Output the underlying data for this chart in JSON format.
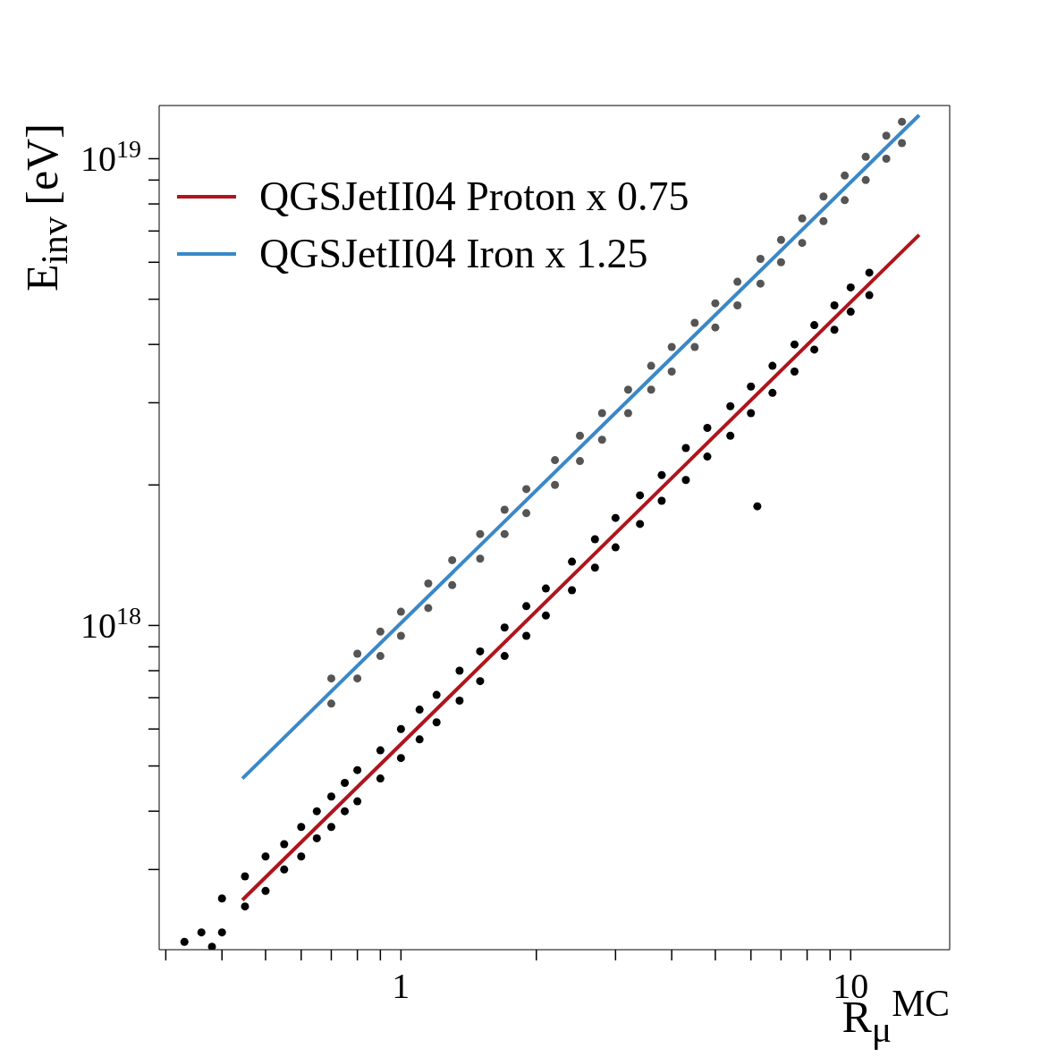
{
  "chart_data": {
    "type": "scatter",
    "xlabel": "R$_{μ}$$^{MC}$",
    "ylabel": "E$_{inv}$ [eV]",
    "log": "xy",
    "grid": false,
    "legend": "top left",
    "xlim": [
      0.29,
      16.6
    ],
    "ylim": [
      2.02e+17,
      1.3e+19
    ],
    "xticks": [
      {
        "value": 0.3,
        "label": null
      },
      {
        "value": 0.4,
        "label": null
      },
      {
        "value": 0.5,
        "label": null
      },
      {
        "value": 0.6,
        "label": null
      },
      {
        "value": 0.7,
        "label": null
      },
      {
        "value": 0.8,
        "label": null
      },
      {
        "value": 0.9,
        "label": null
      },
      1,
      {
        "value": 2,
        "label": null
      },
      {
        "value": 3,
        "label": null
      },
      {
        "value": 4,
        "label": null
      },
      {
        "value": 5,
        "label": null
      },
      {
        "value": 6,
        "label": null
      },
      {
        "value": 7,
        "label": null
      },
      {
        "value": 8,
        "label": null
      },
      {
        "value": 9,
        "label": null
      },
      10
    ],
    "yticks": [
      {
        "value": 3e+17,
        "label": null
      },
      {
        "value": 4e+17,
        "label": null
      },
      {
        "value": 5e+17,
        "label": null
      },
      {
        "value": 6e+17,
        "label": null
      },
      {
        "value": 7e+17,
        "label": null
      },
      {
        "value": 8e+17,
        "label": null
      },
      {
        "value": 9e+17,
        "label": null
      },
      {
        "value": 1e+18,
        "label": "10$^{18}$"
      },
      {
        "value": 2e+18,
        "label": null
      },
      {
        "value": 3e+18,
        "label": null
      },
      {
        "value": 4e+18,
        "label": null
      },
      {
        "value": 5e+18,
        "label": null
      },
      {
        "value": 6e+18,
        "label": null
      },
      {
        "value": 7e+18,
        "label": null
      },
      {
        "value": 8e+18,
        "label": null
      },
      {
        "value": 9e+18,
        "label": null
      },
      {
        "value": 1e+19,
        "label": "10$^{19}$"
      }
    ],
    "series": [
      {
        "type": "scatter",
        "marker": "circle",
        "color": "#000000",
        "x": [
          0.33,
          0.36,
          0.38,
          0.4,
          0.4,
          0.45,
          0.45,
          0.5,
          0.5,
          0.55,
          0.55,
          0.6,
          0.6,
          0.65,
          0.65,
          0.7,
          0.7,
          0.75,
          0.75,
          0.8,
          0.8,
          0.9,
          0.9,
          1.0,
          1.0,
          1.1,
          1.1,
          1.2,
          1.2,
          1.35,
          1.35,
          1.5,
          1.5,
          1.7,
          1.7,
          1.9,
          1.9,
          2.1,
          2.1,
          2.4,
          2.4,
          2.7,
          2.7,
          3.0,
          3.0,
          3.4,
          3.4,
          3.8,
          3.8,
          4.3,
          4.3,
          4.8,
          4.8,
          5.4,
          5.4,
          6.0,
          6.0,
          6.2,
          6.7,
          6.7,
          7.5,
          7.5,
          8.3,
          8.3,
          9.2,
          9.2,
          10,
          10,
          11,
          11
        ],
        "values": [
          2.1e+17,
          2.2e+17,
          2.05e+17,
          2.2e+17,
          2.6e+17,
          2.5e+17,
          2.9e+17,
          2.7e+17,
          3.2e+17,
          3e+17,
          3.4e+17,
          3.2e+17,
          3.7e+17,
          3.5e+17,
          4e+17,
          3.7e+17,
          4.3e+17,
          4e+17,
          4.6e+17,
          4.2e+17,
          4.9e+17,
          4.7e+17,
          5.4e+17,
          5.2e+17,
          6e+17,
          5.7e+17,
          6.6e+17,
          6.2e+17,
          7.1e+17,
          6.9e+17,
          8e+17,
          7.6e+17,
          8.8e+17,
          8.6e+17,
          9.9e+17,
          9.5e+17,
          1.1e+18,
          1.05e+18,
          1.2e+18,
          1.19e+18,
          1.37e+18,
          1.33e+18,
          1.53e+18,
          1.47e+18,
          1.7e+18,
          1.65e+18,
          1.9e+18,
          1.85e+18,
          2.1e+18,
          2.05e+18,
          2.4e+18,
          2.3e+18,
          2.65e+18,
          2.55e+18,
          2.95e+18,
          2.85e+18,
          3.25e+18,
          1.8e+18,
          3.15e+18,
          3.6e+18,
          3.5e+18,
          4e+18,
          3.9e+18,
          4.4e+18,
          4.3e+18,
          4.85e+18,
          4.7e+18,
          5.3e+18,
          5.1e+18,
          5.7e+18
        ]
      },
      {
        "type": "scatter",
        "marker": "circle",
        "color": "#555555",
        "x": [
          0.7,
          0.7,
          0.8,
          0.8,
          0.9,
          0.9,
          1.0,
          1.0,
          1.15,
          1.15,
          1.3,
          1.3,
          1.5,
          1.5,
          1.7,
          1.7,
          1.9,
          1.9,
          2.2,
          2.2,
          2.5,
          2.5,
          2.8,
          2.8,
          3.2,
          3.2,
          3.6,
          3.6,
          4.0,
          4.0,
          4.5,
          4.5,
          5.0,
          5.0,
          5.6,
          5.6,
          6.3,
          6.3,
          7.0,
          7.0,
          7.8,
          7.8,
          8.7,
          8.7,
          9.7,
          9.7,
          10.8,
          10.8,
          12,
          12,
          13,
          13
        ],
        "values": [
          6.8e+17,
          7.7e+17,
          7.7e+17,
          8.7e+17,
          8.6e+17,
          9.7e+17,
          9.5e+17,
          1.07e+18,
          1.09e+18,
          1.23e+18,
          1.22e+18,
          1.38e+18,
          1.39e+18,
          1.57e+18,
          1.57e+18,
          1.77e+18,
          1.74e+18,
          1.96e+18,
          2e+18,
          2.26e+18,
          2.25e+18,
          2.55e+18,
          2.5e+18,
          2.85e+18,
          2.85e+18,
          3.2e+18,
          3.2e+18,
          3.6e+18,
          3.5e+18,
          3.95e+18,
          3.95e+18,
          4.45e+18,
          4.35e+18,
          4.9e+18,
          4.85e+18,
          5.45e+18,
          5.4e+18,
          6.1e+18,
          6e+18,
          6.7e+18,
          6.6e+18,
          7.45e+18,
          7.35e+18,
          8.3e+18,
          8.15e+18,
          9.2e+18,
          9e+18,
          1.01e+19,
          1e+19,
          1.12e+19,
          1.08e+19,
          1.2e+19
        ]
      },
      {
        "type": "line",
        "name": "QGSJetII04 Proton x 0.75",
        "color": "#b0141c",
        "x": [
          0.444,
          14.2
        ],
        "values": [
          2.58e+17,
          6.87e+18
        ]
      },
      {
        "type": "line",
        "name": "QGSJetII04 Iron x 1.25",
        "color": "#3a88c8",
        "x": [
          0.444,
          14.2
        ],
        "values": [
          4.7e+17,
          1.24e+19
        ]
      }
    ]
  }
}
